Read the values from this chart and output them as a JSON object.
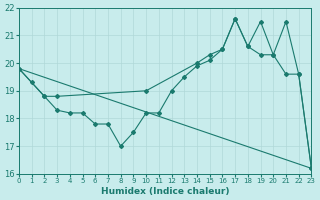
{
  "xlabel": "Humidex (Indice chaleur)",
  "bg_color": "#c8ecec",
  "grid_color": "#b0d8d8",
  "line_color": "#1a7a6e",
  "xlim": [
    0,
    23
  ],
  "ylim": [
    16,
    22
  ],
  "yticks": [
    16,
    17,
    18,
    19,
    20,
    21,
    22
  ],
  "xticks": [
    0,
    1,
    2,
    3,
    4,
    5,
    6,
    7,
    8,
    9,
    10,
    11,
    12,
    13,
    14,
    15,
    16,
    17,
    18,
    19,
    20,
    21,
    22,
    23
  ],
  "line1_x": [
    0,
    23
  ],
  "line1_y": [
    19.8,
    16.2
  ],
  "line2_x": [
    0,
    1,
    2,
    3,
    4,
    5,
    6,
    7,
    8,
    9,
    10,
    11,
    12,
    13,
    14,
    15,
    16,
    17,
    18,
    19,
    20,
    21,
    22,
    23
  ],
  "line2_y": [
    19.8,
    19.3,
    18.8,
    18.3,
    18.2,
    18.2,
    17.8,
    17.8,
    17.0,
    17.5,
    18.2,
    18.2,
    19.0,
    19.5,
    19.9,
    20.1,
    20.5,
    21.6,
    20.6,
    20.3,
    20.3,
    19.6,
    19.6,
    16.2
  ],
  "line3_x": [
    0,
    2,
    3,
    10,
    14,
    15,
    16,
    17,
    18,
    19,
    20,
    21,
    22,
    23
  ],
  "line3_y": [
    19.8,
    18.8,
    18.8,
    19.0,
    20.0,
    20.3,
    20.5,
    21.6,
    20.6,
    21.5,
    20.3,
    21.5,
    19.6,
    16.2
  ]
}
